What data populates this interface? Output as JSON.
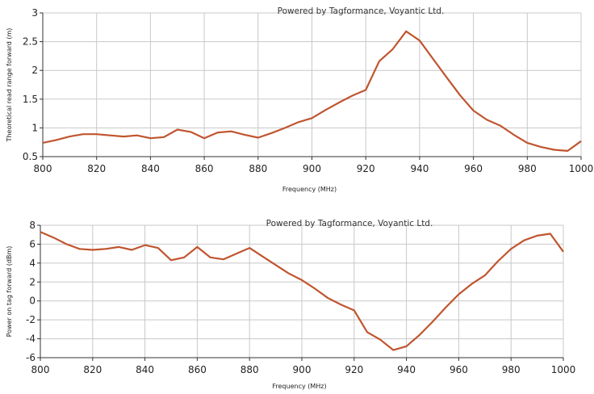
{
  "chart_data": [
    {
      "type": "line",
      "watermark": "Powered by Tagformance, Voyantic Ltd.",
      "xlabel": "Frequency (MHz)",
      "ylabel": "Theoretical read range forward (m)",
      "xlim": [
        800,
        1000
      ],
      "ylim": [
        0.5,
        3
      ],
      "xticks": [
        800,
        820,
        840,
        860,
        880,
        900,
        920,
        940,
        960,
        980,
        1000
      ],
      "yticks": [
        0.5,
        1,
        1.5,
        2,
        2.5,
        3
      ],
      "ytick_labels": [
        "0.5",
        "1",
        "1.5",
        "2",
        "2.5",
        "3"
      ],
      "grid": true,
      "line_color": "#c0552f",
      "series": [
        {
          "x": [
            800,
            805,
            810,
            815,
            820,
            825,
            830,
            835,
            840,
            845,
            850,
            855,
            860,
            865,
            870,
            875,
            880,
            885,
            890,
            895,
            900,
            905,
            910,
            915,
            920,
            925,
            930,
            935,
            940,
            945,
            950,
            955,
            960,
            965,
            970,
            975,
            980,
            985,
            990,
            995,
            1000
          ],
          "y": [
            0.74,
            0.79,
            0.85,
            0.89,
            0.89,
            0.87,
            0.85,
            0.87,
            0.82,
            0.84,
            0.97,
            0.93,
            0.82,
            0.92,
            0.94,
            0.88,
            0.83,
            0.91,
            1.0,
            1.1,
            1.17,
            1.31,
            1.44,
            1.56,
            1.66,
            2.16,
            2.37,
            2.68,
            2.52,
            2.2,
            1.88,
            1.57,
            1.3,
            1.14,
            1.04,
            0.88,
            0.74,
            0.67,
            0.62,
            0.6,
            0.77
          ]
        }
      ]
    },
    {
      "type": "line",
      "watermark": "Powered by Tagformance, Voyantic Ltd.",
      "xlabel": "Frequency (MHz)",
      "ylabel": "Power on tag forward (dBm)",
      "xlim": [
        800,
        1000
      ],
      "ylim": [
        -6,
        8
      ],
      "xticks": [
        800,
        820,
        840,
        860,
        880,
        900,
        920,
        940,
        960,
        980,
        1000
      ],
      "yticks": [
        -6,
        -4,
        -2,
        0,
        2,
        4,
        6,
        8
      ],
      "ytick_labels": [
        "-6",
        "-4",
        "-2",
        "0",
        "2",
        "4",
        "6",
        "8"
      ],
      "grid": true,
      "line_color": "#c0552f",
      "series": [
        {
          "x": [
            800,
            805,
            810,
            815,
            820,
            825,
            830,
            835,
            840,
            845,
            850,
            855,
            860,
            865,
            870,
            875,
            880,
            885,
            890,
            895,
            900,
            905,
            910,
            915,
            920,
            925,
            930,
            935,
            940,
            945,
            950,
            955,
            960,
            965,
            970,
            975,
            980,
            985,
            990,
            995,
            1000
          ],
          "y": [
            7.3,
            6.7,
            6.0,
            5.5,
            5.4,
            5.5,
            5.7,
            5.4,
            5.9,
            5.6,
            4.3,
            4.6,
            5.7,
            4.6,
            4.4,
            5.0,
            5.6,
            4.7,
            3.8,
            2.9,
            2.2,
            1.3,
            0.3,
            -0.4,
            -1.0,
            -3.3,
            -4.1,
            -5.2,
            -4.8,
            -3.6,
            -2.2,
            -0.7,
            0.7,
            1.8,
            2.7,
            4.2,
            5.5,
            6.4,
            6.9,
            7.1,
            5.2
          ]
        }
      ]
    }
  ]
}
